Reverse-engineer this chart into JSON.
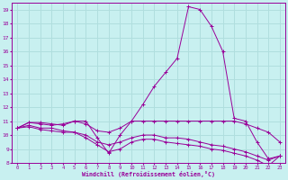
{
  "xlabel": "Windchill (Refroidissement éolien,°C)",
  "background_color": "#c8f0f0",
  "line_color": "#990099",
  "grid_color": "#b0dede",
  "x": [
    0,
    1,
    2,
    3,
    4,
    5,
    6,
    7,
    8,
    9,
    10,
    11,
    12,
    13,
    14,
    15,
    16,
    17,
    18,
    19,
    20,
    21,
    22,
    23
  ],
  "series": [
    [
      10.5,
      10.9,
      10.9,
      10.8,
      10.7,
      11.0,
      11.0,
      9.8,
      8.7,
      10.0,
      11.0,
      12.2,
      13.5,
      14.5,
      15.5,
      19.2,
      19.0,
      17.8,
      16.0,
      11.2,
      11.0,
      9.5,
      8.3,
      8.5
    ],
    [
      10.5,
      10.9,
      10.8,
      10.7,
      10.8,
      11.0,
      10.8,
      10.3,
      10.2,
      10.5,
      11.0,
      11.0,
      11.0,
      11.0,
      11.0,
      11.0,
      11.0,
      11.0,
      11.0,
      11.0,
      10.8,
      10.5,
      10.2,
      9.5
    ],
    [
      10.5,
      10.7,
      10.5,
      10.5,
      10.3,
      10.2,
      10.0,
      9.5,
      9.3,
      9.5,
      9.8,
      10.0,
      10.0,
      9.8,
      9.8,
      9.7,
      9.5,
      9.3,
      9.2,
      9.0,
      8.8,
      8.5,
      8.2,
      8.5
    ],
    [
      10.5,
      10.6,
      10.4,
      10.3,
      10.2,
      10.2,
      9.8,
      9.3,
      8.8,
      9.0,
      9.5,
      9.7,
      9.7,
      9.5,
      9.4,
      9.3,
      9.2,
      9.0,
      8.9,
      8.7,
      8.5,
      8.2,
      7.8,
      8.5
    ]
  ],
  "ylim": [
    8,
    19.5
  ],
  "yticks": [
    8,
    9,
    10,
    11,
    12,
    13,
    14,
    15,
    16,
    17,
    18,
    19
  ],
  "xtick_labels": [
    "0",
    "1",
    "2",
    "3",
    "4",
    "5",
    "6",
    "7",
    "8",
    "9",
    "10",
    "11",
    "12",
    "13",
    "14",
    "15",
    "16",
    "17",
    "18",
    "19",
    "20",
    "21",
    "22",
    "23"
  ],
  "xticks": [
    0,
    1,
    2,
    3,
    4,
    5,
    6,
    7,
    8,
    9,
    10,
    11,
    12,
    13,
    14,
    15,
    16,
    17,
    18,
    19,
    20,
    21,
    22,
    23
  ],
  "xlim": [
    -0.5,
    23.5
  ]
}
